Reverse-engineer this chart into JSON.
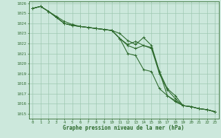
{
  "x": [
    0,
    1,
    2,
    3,
    4,
    5,
    6,
    7,
    8,
    9,
    10,
    11,
    12,
    13,
    14,
    15,
    16,
    17,
    18,
    19,
    20,
    21,
    22,
    23
  ],
  "series": [
    [
      1025.5,
      1025.7,
      1025.2,
      1024.7,
      1024.2,
      1023.9,
      1023.7,
      1023.6,
      1023.5,
      1023.4,
      1023.3,
      1023.0,
      1022.3,
      1021.9,
      1022.6,
      1021.8,
      1019.2,
      1017.5,
      1016.8,
      1015.8,
      1015.7,
      1015.5,
      1015.4,
      1015.2
    ],
    [
      1025.5,
      1025.7,
      1025.2,
      1024.6,
      1024.0,
      1023.8,
      1023.7,
      1023.6,
      1023.5,
      1023.4,
      1023.3,
      1022.5,
      1021.9,
      1022.2,
      1021.8,
      1021.5,
      1019.0,
      1017.4,
      1016.5,
      1015.8,
      1015.7,
      1015.5,
      1015.4,
      1015.2
    ],
    [
      1025.5,
      1025.7,
      1025.2,
      1024.6,
      1024.0,
      1023.8,
      1023.7,
      1023.6,
      1023.5,
      1023.4,
      1023.3,
      1022.5,
      1021.0,
      1020.8,
      1019.4,
      1019.2,
      1017.5,
      1016.8,
      1016.2,
      1015.8,
      1015.7,
      1015.5,
      1015.4,
      1015.2
    ],
    [
      1025.5,
      1025.7,
      1025.2,
      1024.6,
      1024.0,
      1023.8,
      1023.7,
      1023.6,
      1023.5,
      1023.4,
      1023.3,
      1022.5,
      1021.8,
      1021.5,
      1021.8,
      1021.6,
      1019.2,
      1016.8,
      1016.3,
      1015.8,
      1015.7,
      1015.5,
      1015.4,
      1015.2
    ]
  ],
  "line_color": "#2d6a2d",
  "marker_color": "#2d6a2d",
  "bg_color": "#cce8dc",
  "grid_color": "#9ec8b0",
  "text_color": "#2d6a2d",
  "ylim_min": 1015,
  "ylim_max": 1026,
  "yticks": [
    1015,
    1016,
    1017,
    1018,
    1019,
    1020,
    1021,
    1022,
    1023,
    1024,
    1025,
    1026
  ],
  "xlabel": "Graphe pression niveau de la mer (hPa)",
  "marker": "+",
  "linewidth": 0.8,
  "markersize": 3.0,
  "xlabel_fontsize": 5.5,
  "tick_fontsize": 4.2
}
